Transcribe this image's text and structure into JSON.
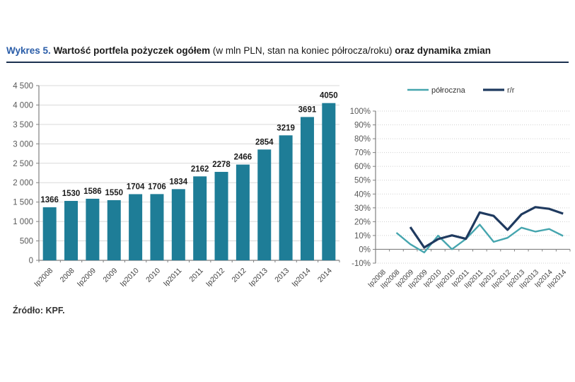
{
  "title": {
    "prefix": "Wykres 5.",
    "bold1": "Wartość portfela pożyczek ogółem",
    "normal": "(w mln PLN, stan na koniec półrocza/roku)",
    "bold2": "oraz dynamika zmian"
  },
  "source": "Źródło: KPF.",
  "colors": {
    "bar": "#1E7D97",
    "series_polroczna": "#45A5AE",
    "series_rr": "#1F3A5F",
    "title_blue": "#2A5DA8",
    "rule": "#1c3150",
    "axis": "#808080",
    "grid": "#d9d9d9",
    "tick_label": "#595959",
    "value_label": "#1a1a1a"
  },
  "chart_data": [
    {
      "type": "bar",
      "title": "Wartość portfela pożyczek ogółem (w mln PLN, stan na koniec półrocza/roku)",
      "categories": [
        "Ip2008",
        "2008",
        "Ip2009",
        "2009",
        "Ip2010",
        "2010",
        "Ip2011",
        "2011",
        "Ip2012",
        "2012",
        "Ip2013",
        "2013",
        "Ip2014",
        "2014"
      ],
      "values": [
        1366,
        1530,
        1586,
        1550,
        1704,
        1706,
        1834,
        2162,
        2278,
        2466,
        2854,
        3219,
        3691,
        4050
      ],
      "xlabel": "",
      "ylabel": "",
      "ylim": [
        0,
        4500
      ],
      "ytick_step": 500,
      "ytick_labels": [
        "0",
        "500",
        "1 000",
        "1 500",
        "2 000",
        "2 500",
        "3 000",
        "3 500",
        "4 000",
        "4 500"
      ],
      "grid": true,
      "data_labels": true,
      "legend_position": "none"
    },
    {
      "type": "line",
      "title": "dynamika zmian",
      "categories": [
        "Ip2008",
        "IIp2008",
        "Ip2009",
        "IIp2009",
        "Ip2010",
        "IIp2010",
        "Ip2011",
        "IIp2011",
        "Ip2012",
        "IIp2012",
        "Ip2013",
        "IIp2013",
        "Ip2014",
        "IIp2014"
      ],
      "series": [
        {
          "name": "półroczna",
          "color": "#45A5AE",
          "values": [
            null,
            12.0,
            3.7,
            -2.3,
            9.9,
            0.1,
            7.5,
            17.9,
            5.4,
            8.3,
            15.7,
            12.8,
            14.7,
            9.7
          ]
        },
        {
          "name": "r/r",
          "color": "#1F3A5F",
          "values": [
            null,
            null,
            16.1,
            1.3,
            7.4,
            10.1,
            7.6,
            26.7,
            24.2,
            14.1,
            25.3,
            30.5,
            29.3,
            25.8
          ]
        }
      ],
      "unit": "%",
      "ylim": [
        -10,
        100
      ],
      "ytick_step": 10,
      "grid": true,
      "legend_position": "top"
    }
  ]
}
